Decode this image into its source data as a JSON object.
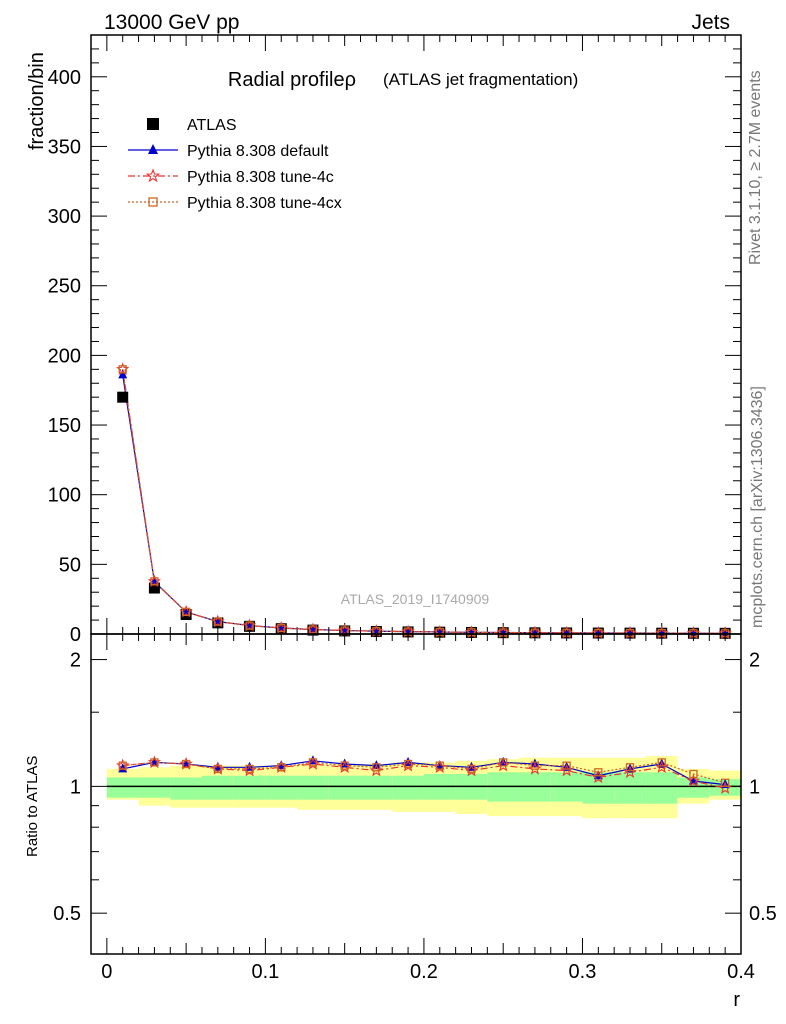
{
  "header": {
    "left": "13000 GeV pp",
    "right": "Jets"
  },
  "side": {
    "rivet": "Rivet 3.1.10, ≥ 2.7M events",
    "mcplots": "mcplots.cern.ch [arXiv:1306.3436]"
  },
  "chart_data": [
    {
      "type": "scatter",
      "title": "Radial profileρ",
      "subtitle": "(ATLAS jet fragmentation)",
      "xlabel": "r",
      "ylabel": "fraction/bin",
      "watermark": "ATLAS_2019_I1740909",
      "xlim": [
        -0.01,
        0.4
      ],
      "ylim": [
        0,
        430
      ],
      "yticks": [
        0,
        50,
        100,
        150,
        200,
        250,
        300,
        350,
        400
      ],
      "x": [
        0.01,
        0.03,
        0.05,
        0.07,
        0.09,
        0.11,
        0.13,
        0.15,
        0.17,
        0.19,
        0.21,
        0.23,
        0.25,
        0.27,
        0.29,
        0.31,
        0.33,
        0.35,
        0.37,
        0.39
      ],
      "series": [
        {
          "name": "ATLAS",
          "color": "#000000",
          "marker": "square",
          "values": [
            170,
            33,
            14,
            8,
            5.5,
            3.8,
            2.8,
            2.2,
            1.8,
            1.5,
            1.3,
            1.1,
            0.95,
            0.85,
            0.75,
            0.68,
            0.62,
            0.57,
            0.52,
            0.48
          ]
        },
        {
          "name": "Pythia 8.308 default",
          "color": "#0000cc",
          "marker": "triangle",
          "values": [
            186,
            37.5,
            15.8,
            8.9,
            6.1,
            4.3,
            3.25,
            2.52,
            2.03,
            1.72,
            1.46,
            1.23,
            1.09,
            0.96,
            0.84,
            0.73,
            0.69,
            0.64,
            0.54,
            0.49
          ]
        },
        {
          "name": "Pythia 8.308 tune-4c",
          "color": "#ee3333",
          "marker": "star",
          "values": [
            190,
            37.7,
            15.9,
            8.9,
            6.0,
            4.25,
            3.2,
            2.48,
            2.0,
            1.7,
            1.45,
            1.21,
            1.07,
            0.95,
            0.83,
            0.72,
            0.67,
            0.63,
            0.54,
            0.48
          ]
        },
        {
          "name": "Pythia 8.308 tune-4cx",
          "color": "#cc6622",
          "marker": "open-square",
          "values": [
            190,
            37.8,
            15.9,
            8.9,
            6.0,
            4.25,
            3.22,
            2.5,
            2.02,
            1.71,
            1.46,
            1.22,
            1.09,
            0.96,
            0.85,
            0.74,
            0.69,
            0.65,
            0.55,
            0.49
          ]
        }
      ]
    },
    {
      "type": "scatter",
      "ylabel": "Ratio to ATLAS",
      "xlabel": "r",
      "ylim": [
        0.4,
        2.3
      ],
      "yscale": "log",
      "yticks": [
        0.5,
        1,
        2
      ],
      "xticks": [
        0,
        0.1,
        0.2,
        0.3,
        0.4
      ],
      "bin_edges": [
        0,
        0.02,
        0.04,
        0.06,
        0.08,
        0.1,
        0.12,
        0.14,
        0.16,
        0.18,
        0.2,
        0.22,
        0.24,
        0.26,
        0.28,
        0.3,
        0.32,
        0.34,
        0.36,
        0.38,
        0.4
      ],
      "band_green_lo": [
        0.94,
        0.94,
        0.93,
        0.93,
        0.93,
        0.93,
        0.93,
        0.93,
        0.93,
        0.93,
        0.93,
        0.93,
        0.92,
        0.92,
        0.92,
        0.91,
        0.91,
        0.91,
        0.94,
        0.95
      ],
      "band_green_hi": [
        1.05,
        1.05,
        1.05,
        1.06,
        1.06,
        1.06,
        1.06,
        1.06,
        1.06,
        1.06,
        1.07,
        1.07,
        1.08,
        1.08,
        1.08,
        1.08,
        1.08,
        1.08,
        1.05,
        1.04
      ],
      "band_yellow_lo": [
        0.93,
        0.9,
        0.89,
        0.89,
        0.89,
        0.89,
        0.88,
        0.88,
        0.88,
        0.87,
        0.87,
        0.86,
        0.85,
        0.85,
        0.85,
        0.84,
        0.84,
        0.84,
        0.91,
        0.93
      ],
      "band_yellow_hi": [
        1.1,
        1.11,
        1.12,
        1.12,
        1.12,
        1.12,
        1.13,
        1.13,
        1.13,
        1.14,
        1.14,
        1.15,
        1.16,
        1.17,
        1.17,
        1.17,
        1.17,
        1.18,
        1.1,
        1.09
      ],
      "x": [
        0.01,
        0.03,
        0.05,
        0.07,
        0.09,
        0.11,
        0.13,
        0.15,
        0.17,
        0.19,
        0.21,
        0.23,
        0.25,
        0.27,
        0.29,
        0.31,
        0.33,
        0.35,
        0.37,
        0.39
      ],
      "series": [
        {
          "name": "Pythia 8.308 default",
          "color": "#0000cc",
          "marker": "triangle",
          "values": [
            1.1,
            1.14,
            1.13,
            1.11,
            1.11,
            1.12,
            1.15,
            1.13,
            1.12,
            1.14,
            1.12,
            1.11,
            1.14,
            1.13,
            1.11,
            1.06,
            1.1,
            1.13,
            1.03,
            1.01
          ]
        },
        {
          "name": "Pythia 8.308 tune-4c",
          "color": "#ee3333",
          "marker": "star",
          "values": [
            1.12,
            1.14,
            1.13,
            1.1,
            1.09,
            1.11,
            1.13,
            1.11,
            1.09,
            1.12,
            1.11,
            1.09,
            1.12,
            1.1,
            1.09,
            1.05,
            1.08,
            1.11,
            1.03,
            0.99
          ]
        },
        {
          "name": "Pythia 8.308 tune-4cx",
          "color": "#cc6622",
          "marker": "open-square",
          "values": [
            1.12,
            1.14,
            1.13,
            1.1,
            1.1,
            1.11,
            1.14,
            1.12,
            1.11,
            1.13,
            1.12,
            1.1,
            1.14,
            1.12,
            1.12,
            1.08,
            1.11,
            1.14,
            1.07,
            1.02
          ]
        }
      ]
    }
  ]
}
